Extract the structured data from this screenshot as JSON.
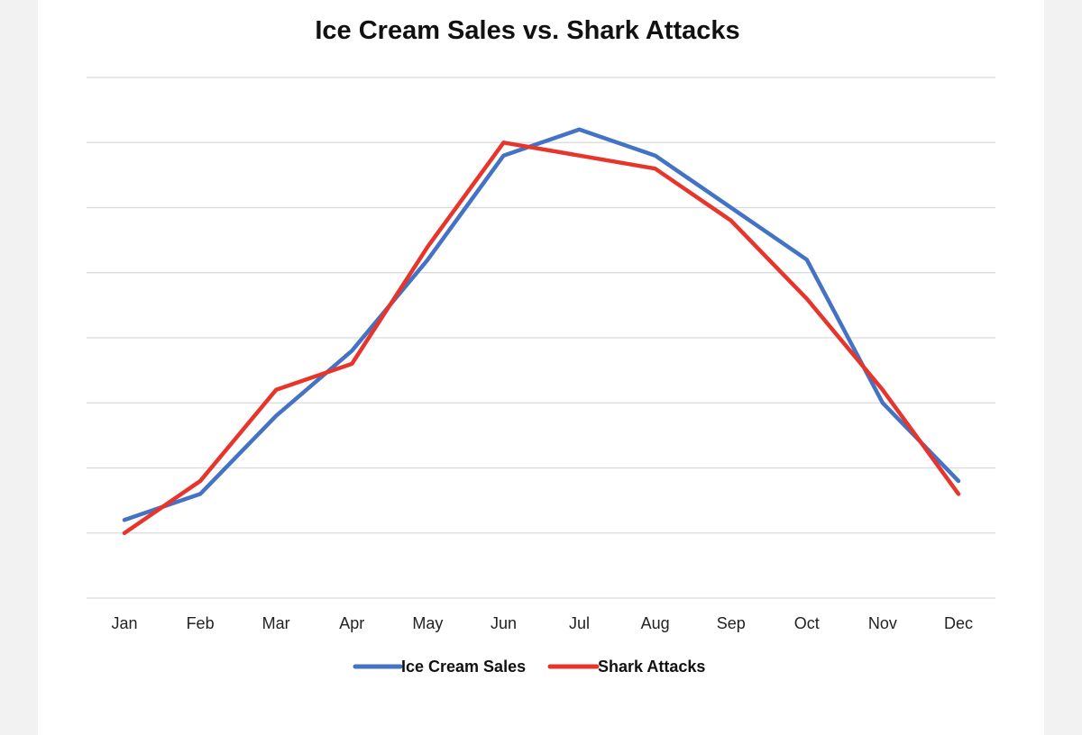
{
  "chart_data": {
    "type": "line",
    "title": "Ice Cream Sales vs. Shark Attacks",
    "categories": [
      "Jan",
      "Feb",
      "Mar",
      "Apr",
      "May",
      "Jun",
      "Jul",
      "Aug",
      "Sep",
      "Oct",
      "Nov",
      "Dec"
    ],
    "series": [
      {
        "name": "Ice Cream Sales",
        "color": "#4472c4",
        "values": [
          1.2,
          1.6,
          2.8,
          3.8,
          5.2,
          6.8,
          7.2,
          6.8,
          6.0,
          5.2,
          3.0,
          1.8
        ]
      },
      {
        "name": "Shark Attacks",
        "color": "#e8352b",
        "values": [
          1.0,
          1.8,
          3.2,
          3.6,
          5.4,
          7.0,
          6.8,
          6.6,
          5.8,
          4.6,
          3.2,
          1.6
        ]
      }
    ],
    "ylim": [
      0,
      8
    ],
    "y_gridlines": 8,
    "y_tick_labels_shown": false,
    "grid": true,
    "legend_position": "bottom"
  }
}
